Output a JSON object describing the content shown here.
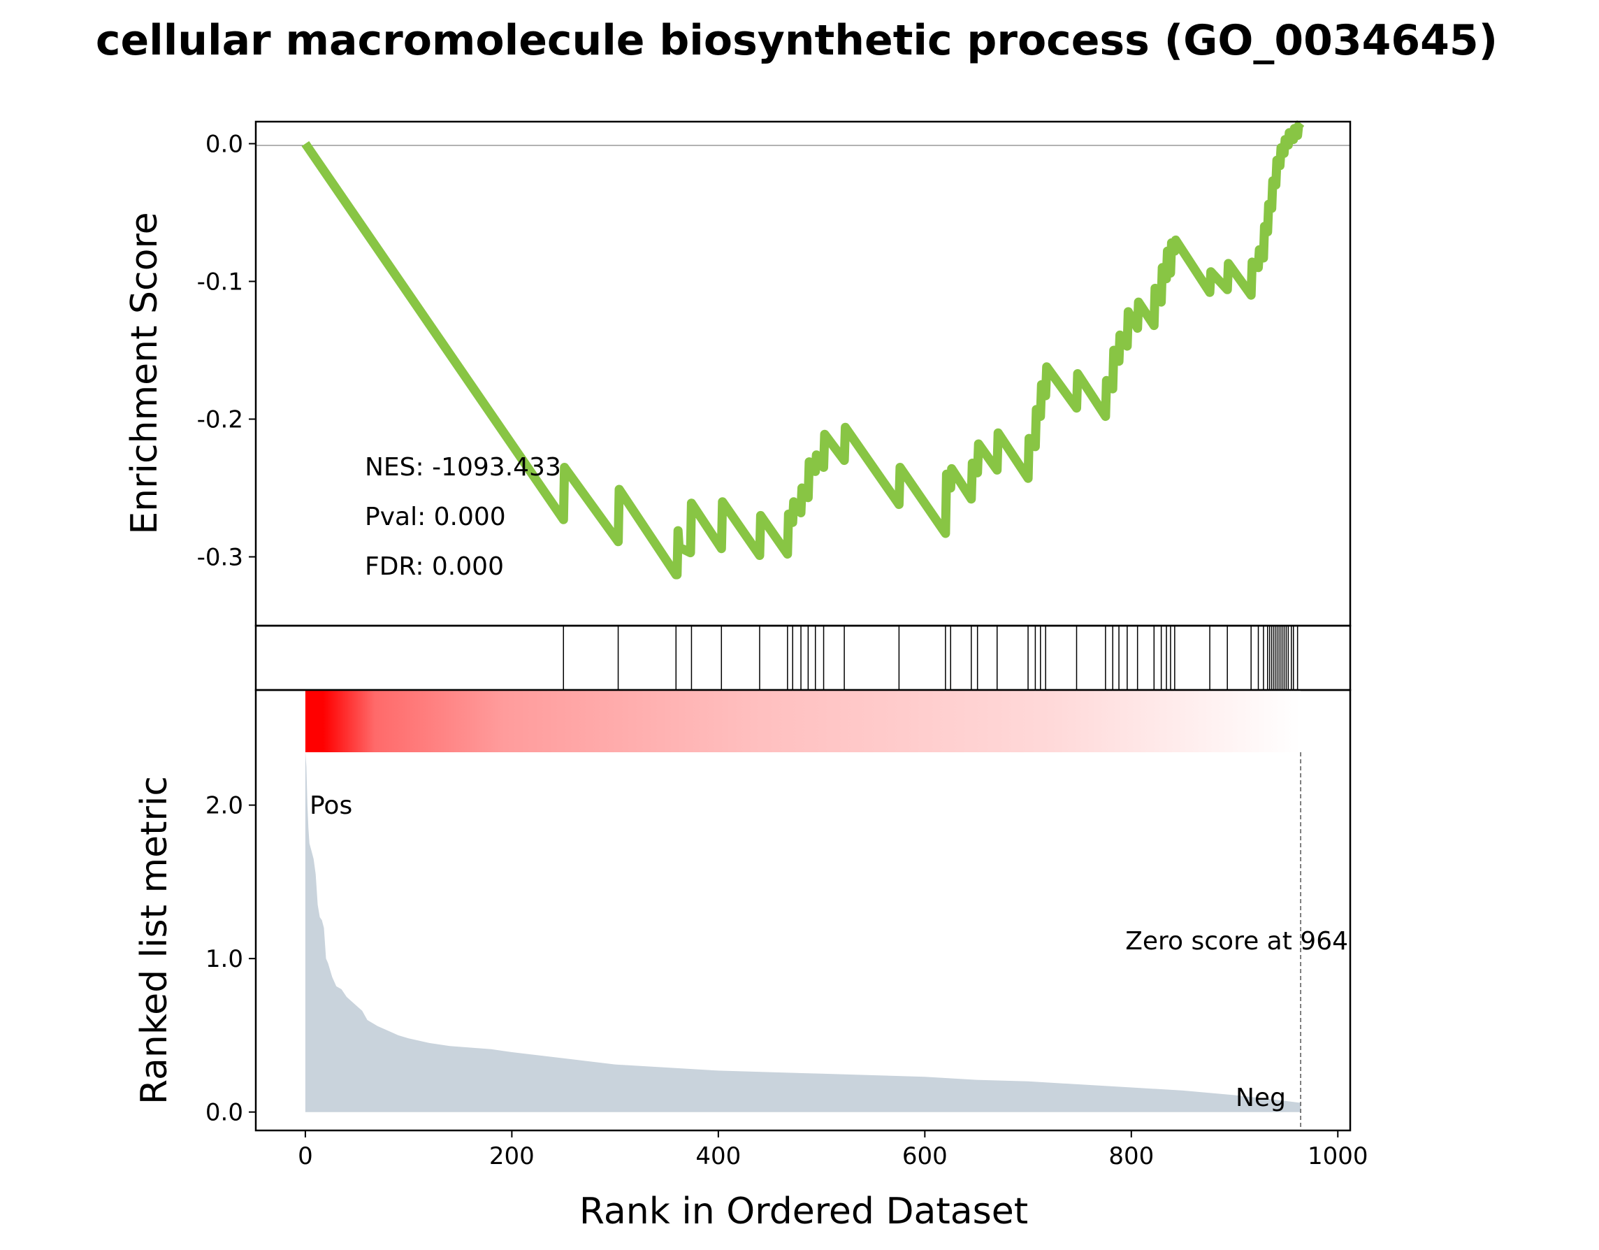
{
  "title": "cellular macromolecule biosynthetic process (GO_0034645)",
  "colors": {
    "es_line": "#88c544",
    "ranked_fill": "#c9d3dc",
    "pos_label": "#ff0000",
    "neg_label": "#0000ff",
    "heat_start": "#ff0000",
    "heat_end": "#ffffff"
  },
  "stats": {
    "nes": "NES: -1093.433",
    "pval": "Pval: 0.000",
    "fdr": "FDR: 0.000"
  },
  "annotations": {
    "pos": "Pos",
    "neg": "Neg",
    "zero_score": "Zero score at 964"
  },
  "chart_data": {
    "type": "line",
    "xlabel": "Rank in Ordered Dataset",
    "xlim": [
      -48,
      1012
    ],
    "x_ticks": [
      0,
      200,
      400,
      600,
      800,
      1000
    ],
    "zero_score_rank": 964,
    "grid": false,
    "enrichment": {
      "ylabel": "Enrichment Score",
      "ylim": [
        -0.35,
        0.016
      ],
      "y_ticks": [
        {
          "value": 0.0,
          "label": "0.0"
        },
        {
          "value": -0.1,
          "label": "-0.1"
        },
        {
          "value": -0.2,
          "label": "-0.2"
        },
        {
          "value": -0.3,
          "label": "-0.3"
        }
      ],
      "x": [
        0,
        250,
        251,
        303,
        304,
        359,
        360,
        361,
        362,
        373,
        374,
        403,
        404,
        440,
        441,
        467,
        468,
        472,
        473,
        480,
        481,
        487,
        488,
        494,
        495,
        502,
        503,
        522,
        523,
        575,
        576,
        620,
        621,
        625,
        626,
        645,
        646,
        651,
        652,
        670,
        671,
        700,
        701,
        707,
        708,
        712,
        713,
        717,
        718,
        747,
        748,
        775,
        776,
        782,
        783,
        788,
        789,
        796,
        797,
        806,
        807,
        822,
        823,
        829,
        830,
        834,
        835,
        838,
        839,
        842,
        843,
        876,
        877,
        893,
        894,
        916,
        917,
        923,
        924,
        928,
        929,
        932,
        933,
        936,
        937,
        940,
        941,
        944,
        945,
        948,
        949,
        952,
        953,
        957,
        958,
        961,
        962,
        964
      ],
      "y": [
        0.0,
        -0.273,
        -0.235,
        -0.289,
        -0.251,
        -0.313,
        -0.313,
        -0.281,
        -0.293,
        -0.297,
        -0.261,
        -0.294,
        -0.26,
        -0.299,
        -0.27,
        -0.298,
        -0.269,
        -0.275,
        -0.26,
        -0.268,
        -0.25,
        -0.257,
        -0.231,
        -0.238,
        -0.226,
        -0.235,
        -0.211,
        -0.23,
        -0.206,
        -0.262,
        -0.235,
        -0.283,
        -0.24,
        -0.25,
        -0.236,
        -0.258,
        -0.232,
        -0.239,
        -0.218,
        -0.237,
        -0.21,
        -0.243,
        -0.214,
        -0.22,
        -0.193,
        -0.198,
        -0.175,
        -0.183,
        -0.162,
        -0.192,
        -0.167,
        -0.198,
        -0.172,
        -0.178,
        -0.15,
        -0.158,
        -0.139,
        -0.147,
        -0.122,
        -0.134,
        -0.115,
        -0.132,
        -0.105,
        -0.115,
        -0.09,
        -0.098,
        -0.078,
        -0.094,
        -0.072,
        -0.078,
        -0.07,
        -0.108,
        -0.093,
        -0.106,
        -0.087,
        -0.11,
        -0.086,
        -0.09,
        -0.077,
        -0.083,
        -0.06,
        -0.064,
        -0.044,
        -0.047,
        -0.027,
        -0.03,
        -0.012,
        -0.016,
        -0.003,
        -0.007,
        0.003,
        -0.001,
        0.008,
        0.003,
        0.011,
        0.006,
        0.013,
        0.015
      ]
    },
    "hits": [
      250,
      303,
      359,
      374,
      403,
      440,
      467,
      472,
      480,
      487,
      494,
      502,
      522,
      575,
      620,
      625,
      645,
      651,
      670,
      700,
      707,
      712,
      717,
      747,
      775,
      782,
      788,
      796,
      806,
      822,
      829,
      834,
      838,
      842,
      876,
      893,
      916,
      923,
      928,
      932,
      934,
      936,
      938,
      940,
      942,
      944,
      946,
      948,
      950,
      952,
      955,
      957,
      961
    ],
    "ranked_metric": {
      "ylabel": "Ranked list metric",
      "ylim": [
        -0.12,
        2.75
      ],
      "y_ticks": [
        {
          "value": 0.0,
          "label": "0.0"
        },
        {
          "value": 1.0,
          "label": "1.0"
        },
        {
          "value": 2.0,
          "label": "2.0"
        }
      ],
      "x": [
        0,
        1,
        2,
        3,
        4,
        6,
        8,
        10,
        12,
        14,
        16,
        18,
        20,
        22,
        26,
        30,
        35,
        40,
        45,
        50,
        55,
        60,
        70,
        80,
        90,
        100,
        120,
        140,
        160,
        180,
        200,
        250,
        300,
        350,
        400,
        450,
        500,
        550,
        600,
        650,
        700,
        750,
        800,
        850,
        900,
        940,
        964
      ],
      "values": [
        2.35,
        2.25,
        2.0,
        1.85,
        1.75,
        1.7,
        1.65,
        1.55,
        1.35,
        1.27,
        1.25,
        1.2,
        1.0,
        0.97,
        0.88,
        0.82,
        0.8,
        0.75,
        0.72,
        0.69,
        0.66,
        0.6,
        0.56,
        0.53,
        0.5,
        0.48,
        0.45,
        0.43,
        0.42,
        0.41,
        0.39,
        0.35,
        0.31,
        0.29,
        0.27,
        0.26,
        0.25,
        0.24,
        0.23,
        0.21,
        0.2,
        0.18,
        0.16,
        0.14,
        0.11,
        0.08,
        0.06
      ]
    }
  }
}
